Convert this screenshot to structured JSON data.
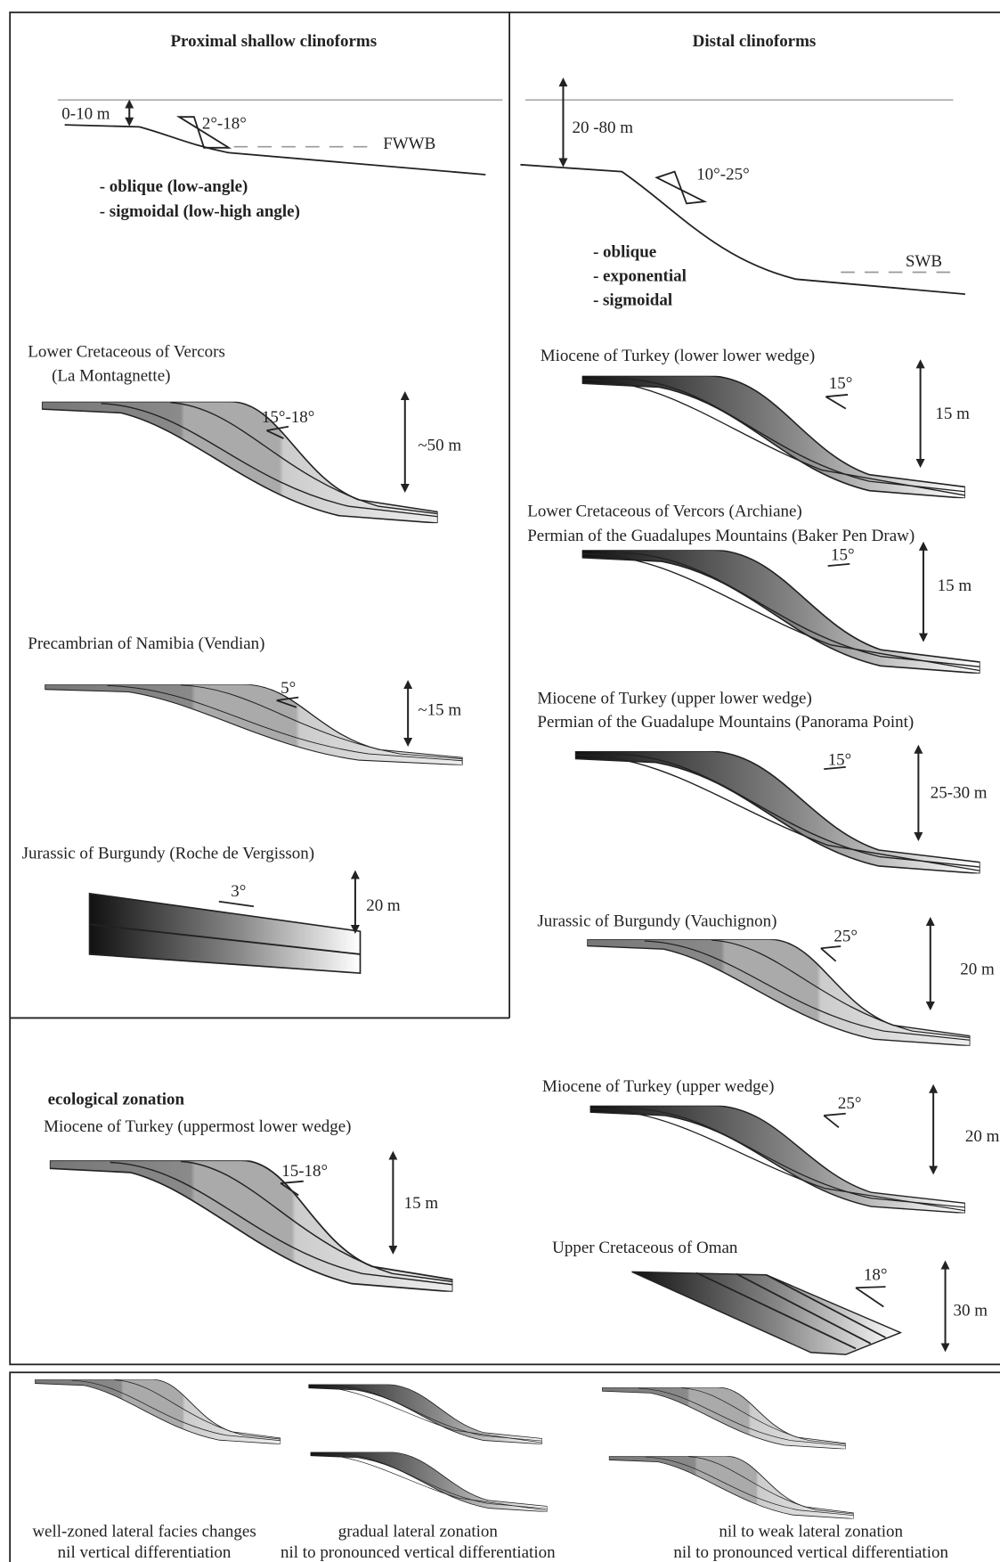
{
  "proximal": {
    "title": "Proximal shallow clinoforms",
    "depth": "0-10 m",
    "angle": "2°-18°",
    "base": "FWWB",
    "types": [
      "- oblique (low-angle)",
      "- sigmoidal (low-high angle)"
    ],
    "examples": [
      {
        "label": [
          "Lower Cretaceous of Vercors",
          "(La Montagnette)"
        ],
        "angle": "15°-18°",
        "height": "~50 m"
      },
      {
        "label": [
          "Precambrian of Namibia (Vendian)"
        ],
        "angle": "5°",
        "height": "~15 m"
      },
      {
        "label": [
          "Jurassic of Burgundy (Roche de Vergisson)"
        ],
        "angle": "3°",
        "height": "20 m"
      }
    ]
  },
  "distal": {
    "title": "Distal clinoforms",
    "depth": "20 -80 m",
    "angle": "10°-25°",
    "base": "SWB",
    "types": [
      "- oblique",
      "- exponential",
      "- sigmoidal"
    ],
    "examples": [
      {
        "label": [
          "Miocene of Turkey (lower lower wedge)"
        ],
        "angle": "15°",
        "height": "15 m"
      },
      {
        "label": [
          "Lower Cretaceous of Vercors (Archiane)",
          "Permian of the Guadalupes Mountains (Baker Pen Draw)"
        ],
        "angle": "15°",
        "height": "15 m"
      },
      {
        "label": [
          "Miocene of Turkey (upper lower wedge)",
          "Permian of the Guadalupe Mountains (Panorama Point)"
        ],
        "angle": "15°",
        "height": "25-30 m"
      },
      {
        "label": [
          "Jurassic of Burgundy (Vauchignon)"
        ],
        "angle": "25°",
        "height": "20 m"
      },
      {
        "label": [
          "Miocene of Turkey (upper wedge)"
        ],
        "angle": "25°",
        "height": "20 m"
      },
      {
        "label": [
          "Upper Cretaceous of Oman"
        ],
        "angle": "18°",
        "height": "30 m"
      }
    ]
  },
  "ecological": {
    "title": "ecological zonation",
    "label": "Miocene of Turkey (uppermost lower wedge)",
    "angle": "15-18°",
    "height": "15 m"
  },
  "legend": [
    [
      "well-zoned lateral facies changes",
      "nil vertical differentiation"
    ],
    [
      "gradual lateral zonation",
      "nil to pronounced vertical differentiation"
    ],
    [
      "nil to weak lateral zonation",
      "nil to pronounced vertical differentiation"
    ]
  ]
}
